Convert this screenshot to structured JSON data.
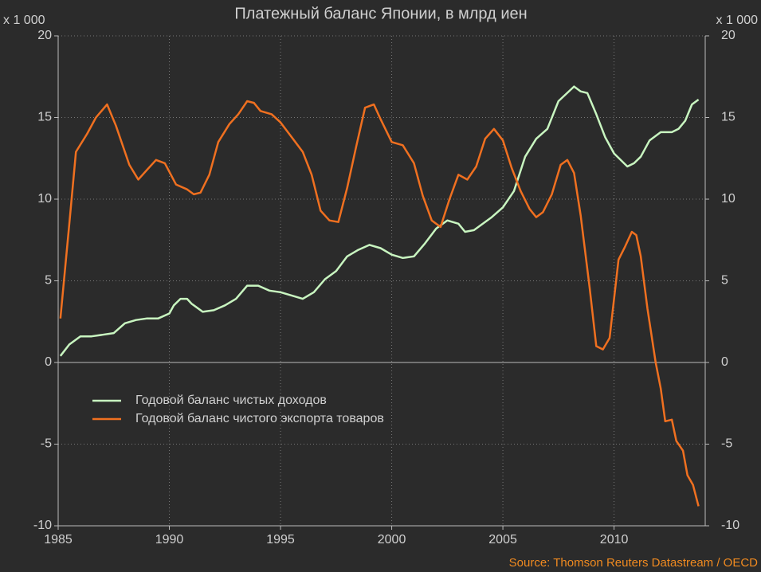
{
  "chart_data": {
    "type": "line",
    "title": "Платежный баланс Японии, в млрд иен",
    "ylabel": "x 1 000",
    "y2label": "x 1 000",
    "source": "Source: Thomson Reuters Datastream / OECD",
    "xlim": [
      1985,
      2014.1
    ],
    "xticks": [
      1985,
      1990,
      1995,
      2000,
      2005,
      2010
    ],
    "ylim": [
      -10,
      20
    ],
    "yticks": [
      -10,
      -5,
      0,
      5,
      10,
      15,
      20
    ],
    "y2lim": [
      -10,
      20
    ],
    "y2ticks": [
      -10,
      -5,
      0,
      5,
      10,
      15,
      20
    ],
    "grid": true,
    "legend": "lower left",
    "series": [
      {
        "name": "Годовой баланс чистых доходов",
        "color": "#c8f5c0",
        "x": [
          1985.1,
          1985.5,
          1986,
          1986.5,
          1987,
          1987.5,
          1988,
          1988.5,
          1989,
          1989.5,
          1990,
          1990.2,
          1990.5,
          1990.8,
          1991,
          1991.5,
          1992,
          1992.5,
          1993,
          1993.5,
          1994,
          1994.5,
          1995,
          1995.5,
          1996,
          1996.5,
          1997,
          1997.5,
          1998,
          1998.5,
          1999,
          1999.5,
          2000,
          2000.5,
          2001,
          2001.5,
          2002,
          2002.5,
          2003,
          2003.3,
          2003.7,
          2004,
          2004.5,
          2005,
          2005.5,
          2006,
          2006.5,
          2007,
          2007.5,
          2008.2,
          2008.5,
          2008.8,
          2009.2,
          2009.6,
          2010,
          2010.6,
          2010.9,
          2011.2,
          2011.6,
          2012.1,
          2012.6,
          2012.9,
          2013.2,
          2013.5,
          2013.8
        ],
        "values": [
          0.4,
          1.1,
          1.6,
          1.6,
          1.7,
          1.8,
          2.4,
          2.6,
          2.7,
          2.7,
          3.0,
          3.5,
          3.9,
          3.9,
          3.6,
          3.1,
          3.2,
          3.5,
          3.9,
          4.7,
          4.7,
          4.4,
          4.3,
          4.1,
          3.9,
          4.3,
          5.1,
          5.6,
          6.5,
          6.9,
          7.2,
          7.0,
          6.6,
          6.4,
          6.5,
          7.3,
          8.2,
          8.7,
          8.5,
          8.0,
          8.1,
          8.4,
          8.9,
          9.5,
          10.5,
          12.6,
          13.7,
          14.3,
          16.0,
          16.9,
          16.6,
          16.5,
          15.2,
          13.8,
          12.8,
          12.0,
          12.2,
          12.6,
          13.6,
          14.1,
          14.1,
          14.3,
          14.8,
          15.8,
          16.1
        ]
      },
      {
        "name": "Годовой баланс чистого экспорта товаров",
        "color": "#f07020",
        "x": [
          1985.1,
          1985.5,
          1985.8,
          1986.3,
          1986.7,
          1987.2,
          1987.6,
          1988.2,
          1988.6,
          1989.0,
          1989.4,
          1989.8,
          1990.3,
          1990.8,
          1991.1,
          1991.4,
          1991.8,
          1992.2,
          1992.7,
          1993.1,
          1993.5,
          1993.8,
          1994.1,
          1994.6,
          1995,
          1995.5,
          1996,
          1996.4,
          1996.8,
          1997.2,
          1997.6,
          1998,
          1998.4,
          1998.8,
          1999.2,
          1999.5,
          2000,
          2000.5,
          2001,
          2001.4,
          2001.8,
          2002.2,
          2002.6,
          2003,
          2003.4,
          2003.8,
          2004.2,
          2004.6,
          2005,
          2005.4,
          2005.8,
          2006.2,
          2006.5,
          2006.8,
          2007.2,
          2007.6,
          2007.9,
          2008.2,
          2008.5,
          2008.9,
          2009.2,
          2009.5,
          2009.8,
          2010.2,
          2010.5,
          2010.8,
          2011.0,
          2011.2,
          2011.5,
          2011.87,
          2012.1,
          2012.3,
          2012.6,
          2012.8,
          2013.1,
          2013.3,
          2013.55,
          2013.8
        ],
        "values": [
          2.7,
          8.5,
          12.9,
          14.0,
          15.0,
          15.8,
          14.5,
          12.1,
          11.2,
          11.8,
          12.4,
          12.2,
          10.9,
          10.6,
          10.3,
          10.4,
          11.5,
          13.5,
          14.6,
          15.2,
          16.0,
          15.9,
          15.4,
          15.2,
          14.7,
          13.8,
          12.9,
          11.5,
          9.3,
          8.7,
          8.6,
          10.7,
          13.2,
          15.6,
          15.8,
          14.9,
          13.5,
          13.3,
          12.2,
          10.2,
          8.7,
          8.3,
          10.0,
          11.5,
          11.2,
          12.0,
          13.7,
          14.3,
          13.6,
          11.9,
          10.5,
          9.4,
          8.9,
          9.2,
          10.3,
          12.1,
          12.4,
          11.6,
          9.0,
          4.6,
          1.0,
          0.8,
          1.5,
          6.3,
          7.1,
          8.0,
          7.8,
          6.5,
          3.3,
          0,
          -1.6,
          -3.6,
          -3.5,
          -4.8,
          -5.4,
          -6.9,
          -7.5,
          -8.8
        ]
      }
    ]
  }
}
